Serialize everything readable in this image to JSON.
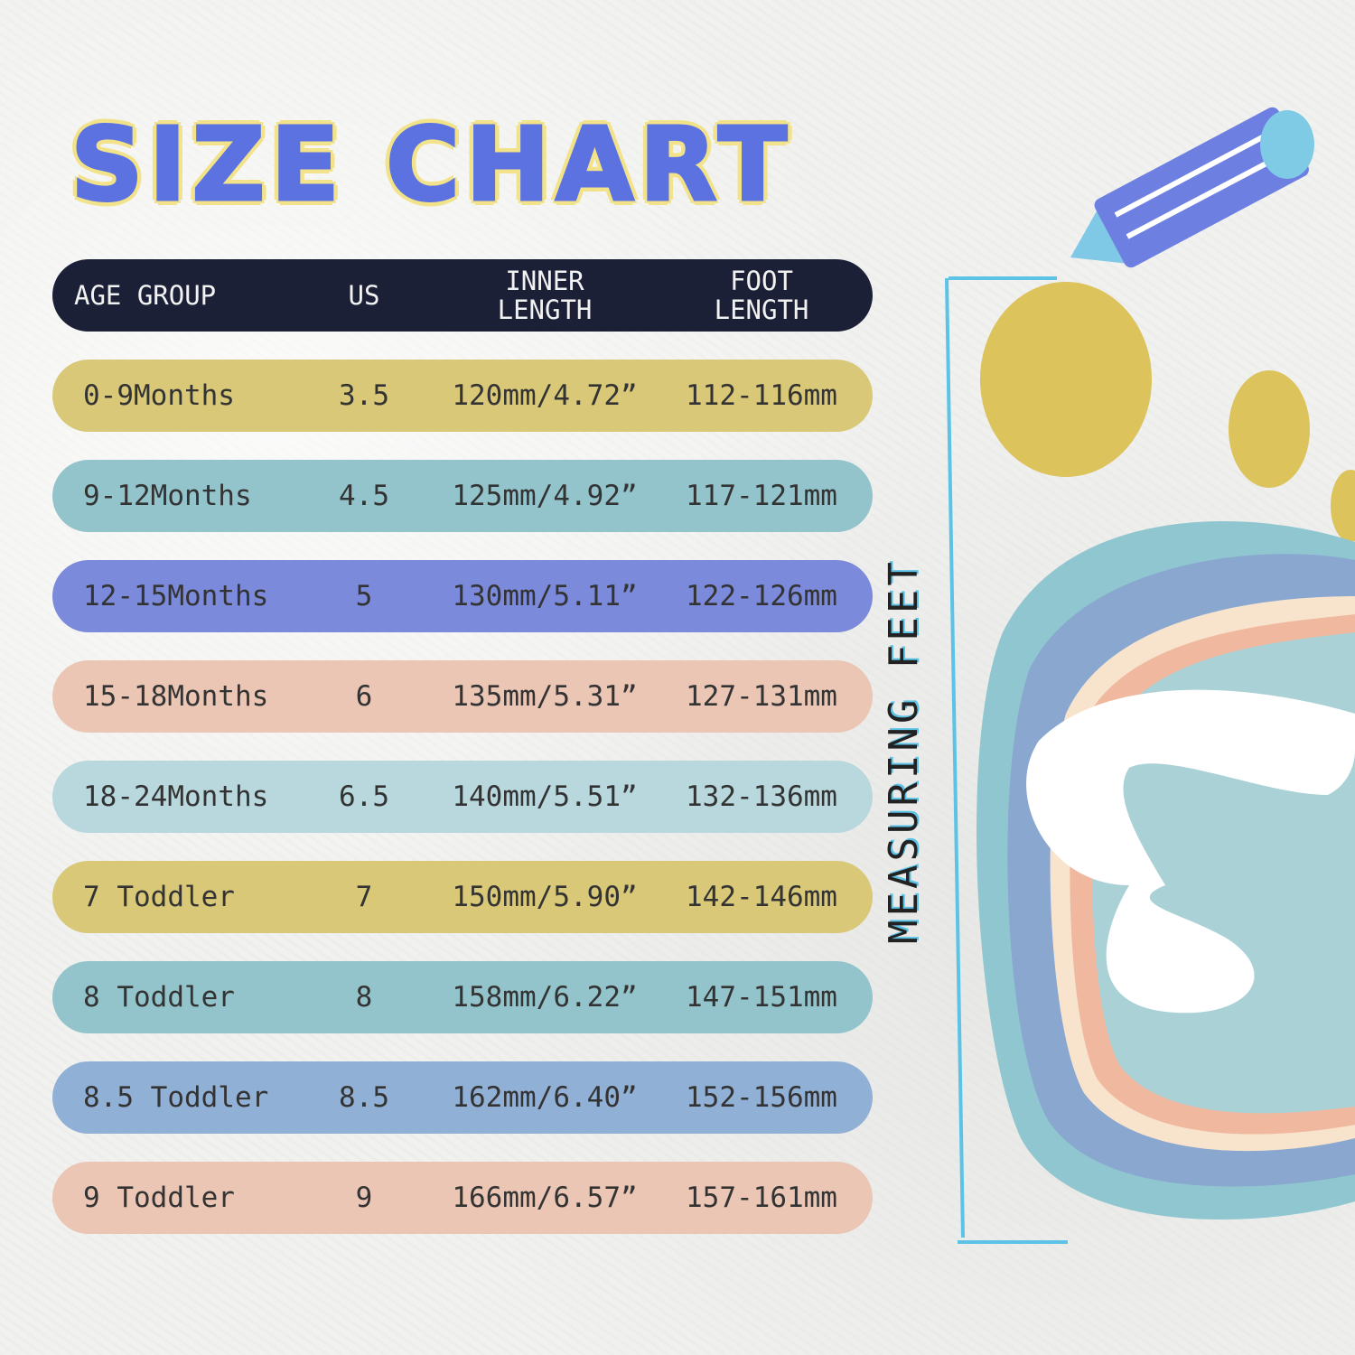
{
  "title": "SIZE CHART",
  "side_label": "MEASURING FEET",
  "headers": [
    "AGE GROUP",
    "US",
    "INNER\nLENGTH",
    "FOOT\nLENGTH"
  ],
  "rows": [
    {
      "age": "0-9Months",
      "us": "3.5",
      "inner": "120mm/4.72”",
      "foot": "112-116mm",
      "color": "#d8c878"
    },
    {
      "age": "9-12Months",
      "us": "4.5",
      "inner": "125mm/4.92”",
      "foot": "117-121mm",
      "color": "#93c4cc"
    },
    {
      "age": "12-15Months",
      "us": "5",
      "inner": "130mm/5.11”",
      "foot": "122-126mm",
      "color": "#7b8ada"
    },
    {
      "age": "15-18Months",
      "us": "6",
      "inner": "135mm/5.31”",
      "foot": "127-131mm",
      "color": "#ebc6b4"
    },
    {
      "age": "18-24Months",
      "us": "6.5",
      "inner": "140mm/5.51”",
      "foot": "132-136mm",
      "color": "#b8d8de"
    },
    {
      "age": "7 Toddler",
      "us": "7",
      "inner": "150mm/5.90”",
      "foot": "142-146mm",
      "color": "#d8c878"
    },
    {
      "age": "8 Toddler",
      "us": "8",
      "inner": "158mm/6.22”",
      "foot": "147-151mm",
      "color": "#93c4cc"
    },
    {
      "age": "8.5 Toddler",
      "us": "8.5",
      "inner": "162mm/6.40”",
      "foot": "152-156mm",
      "color": "#91b0d6"
    },
    {
      "age": "9 Toddler",
      "us": "9",
      "inner": "166mm/6.57”",
      "foot": "157-161mm",
      "color": "#ebc6b4"
    }
  ],
  "colors": {
    "title": "#5b72e0",
    "title_outline": "#f2e38a",
    "header_bg": "#1c2036",
    "ruler": "#5cc3e6"
  }
}
